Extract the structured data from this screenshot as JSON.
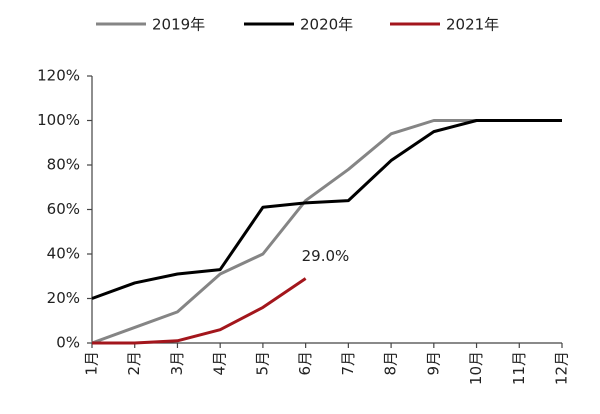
{
  "chart_data": {
    "type": "line",
    "categories": [
      "1月",
      "2月",
      "3月",
      "4月",
      "5月",
      "6月",
      "7月",
      "8月",
      "9月",
      "10月",
      "11月",
      "12月"
    ],
    "series": [
      {
        "name": "2019年",
        "color": "#858585",
        "values": [
          0,
          7,
          14,
          31,
          40,
          64,
          78,
          94,
          100,
          100,
          100,
          100
        ]
      },
      {
        "name": "2020年",
        "color": "#000000",
        "values": [
          20,
          27,
          31,
          33,
          61,
          63,
          64,
          82,
          95,
          100,
          100,
          100
        ]
      },
      {
        "name": "2021年",
        "color": "#a3161c",
        "values": [
          0,
          0,
          1,
          6,
          16,
          29,
          null,
          null,
          null,
          null,
          null,
          null
        ]
      }
    ],
    "ylim": [
      0,
      120
    ],
    "yticks": [
      {
        "value": 0,
        "label": "0%"
      },
      {
        "value": 20,
        "label": "20%"
      },
      {
        "value": 40,
        "label": "40%"
      },
      {
        "value": 60,
        "label": "60%"
      },
      {
        "value": 80,
        "label": "80%"
      },
      {
        "value": 100,
        "label": "100%"
      },
      {
        "value": 120,
        "label": "120%"
      }
    ],
    "grid": false,
    "legend": "top",
    "annotations": [
      {
        "text": "29.0%",
        "series": 2,
        "index": 5
      }
    ]
  }
}
